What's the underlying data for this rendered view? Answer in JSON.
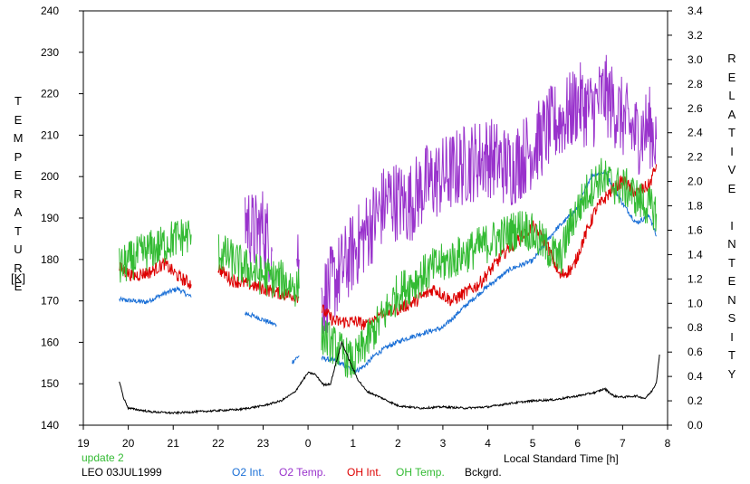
{
  "chart_data": {
    "type": "line",
    "axes": {
      "x": {
        "label": "Local Standard Time [h]",
        "ticks": [
          "19",
          "20",
          "21",
          "22",
          "23",
          "0",
          "1",
          "2",
          "3",
          "4",
          "5",
          "6",
          "7",
          "8"
        ],
        "range": [
          19,
          32
        ]
      },
      "y_left": {
        "label_letters": [
          "T",
          "E",
          "M",
          "P",
          "E",
          "R",
          "A",
          "T",
          "U",
          "R",
          "E"
        ],
        "unit": "[K]",
        "range": [
          140,
          240
        ],
        "ticks": [
          "140",
          "150",
          "160",
          "170",
          "180",
          "190",
          "200",
          "210",
          "220",
          "230",
          "240"
        ]
      },
      "y_right": {
        "label_words": [
          [
            "R",
            "E",
            "L",
            "A",
            "T",
            "I",
            "V",
            "E"
          ],
          [
            "I",
            "N",
            "T",
            "E",
            "N",
            "S",
            "I",
            "T",
            "Y"
          ]
        ],
        "range": [
          0.0,
          3.4
        ],
        "ticks": [
          "0.0",
          "0.2",
          "0.4",
          "0.6",
          "0.8",
          "1.0",
          "1.2",
          "1.4",
          "1.6",
          "1.8",
          "2.0",
          "2.2",
          "2.4",
          "2.6",
          "2.8",
          "3.0",
          "3.2",
          "3.4"
        ]
      }
    },
    "grid": false,
    "notes": {
      "update": "update 2",
      "station": "LEO 03JUL1999"
    },
    "legend_position": "bottom",
    "series": [
      {
        "name": "O2 Int.",
        "color": "#1a6fd6",
        "axis": "right",
        "noise": 0.02,
        "segments": [
          {
            "x": [
              19.8,
              20.1,
              20.4,
              20.8,
              21.1,
              21.4
            ],
            "y": [
              1.03,
              1.02,
              1.01,
              1.08,
              1.12,
              1.05
            ]
          },
          {
            "x": [
              22.6,
              22.9,
              23.3
            ],
            "y": [
              0.92,
              0.88,
              0.82
            ]
          },
          {
            "x": [
              23.65,
              23.8
            ],
            "y": [
              0.52,
              0.57
            ]
          },
          {
            "x": [
              24.3,
              24.6,
              24.9,
              25.1,
              25.3,
              25.5,
              25.8,
              26.1,
              26.5,
              27.0,
              27.5,
              28.0,
              28.5,
              29.0,
              29.5,
              30.0,
              30.3,
              30.6,
              31.0,
              31.3,
              31.6,
              31.75
            ],
            "y": [
              0.55,
              0.53,
              0.47,
              0.45,
              0.5,
              0.58,
              0.65,
              0.7,
              0.75,
              0.8,
              0.98,
              1.14,
              1.28,
              1.35,
              1.6,
              1.78,
              2.05,
              2.08,
              1.82,
              1.66,
              1.72,
              1.55
            ]
          }
        ]
      },
      {
        "name": "O2 Temp.",
        "color": "#9933cc",
        "axis": "left",
        "noise": 10,
        "segments": [
          {
            "x": [
              22.6,
              22.8,
              23.0,
              23.2
            ],
            "y": [
              190,
              186,
              188,
              182
            ]
          },
          {
            "x": [
              23.75,
              23.8
            ],
            "y": [
              182,
              180
            ]
          },
          {
            "x": [
              24.3,
              24.6,
              24.9,
              25.2,
              25.5,
              25.8,
              26.2,
              26.6,
              27.0,
              27.5,
              28.0,
              28.5,
              29.0,
              29.4,
              29.8,
              30.0,
              30.3,
              30.6,
              31.0,
              31.3,
              31.6,
              31.75
            ],
            "y": [
              170,
              175,
              180,
              185,
              190,
              195,
              193,
              198,
              200,
              203,
              205,
              202,
              207,
              212,
              215,
              218,
              216,
              220,
              214,
              210,
              212,
              209
            ]
          }
        ]
      },
      {
        "name": "OH Int.",
        "color": "#dd0000",
        "axis": "left",
        "noise": 1.6,
        "segments": [
          {
            "x": [
              19.8,
              20.1,
              20.5,
              20.8,
              21.1,
              21.4
            ],
            "y": [
              178,
              176,
              177,
              179,
              176,
              174
            ]
          },
          {
            "x": [
              22.0,
              22.3,
              22.7,
              23.0,
              23.3,
              23.8
            ],
            "y": [
              178,
              175,
              174,
              173,
              172,
              171
            ]
          },
          {
            "x": [
              24.3,
              24.6,
              24.9,
              25.1,
              25.3,
              25.6,
              26.0,
              26.4,
              26.8,
              27.2,
              27.5,
              27.8,
              28.1,
              28.4,
              28.7,
              29.0,
              29.3,
              29.6,
              29.9,
              30.1,
              30.4,
              30.7,
              31.0,
              31.3,
              31.6,
              31.75
            ],
            "y": [
              168,
              165,
              165,
              165,
              164,
              167,
              168,
              170,
              173,
              170,
              172,
              174,
              178,
              182,
              185,
              188,
              184,
              176,
              178,
              184,
              192,
              196,
              199,
              196,
              198,
              203
            ]
          }
        ]
      },
      {
        "name": "OH Temp.",
        "color": "#33bb33",
        "axis": "left",
        "noise": 5,
        "segments": [
          {
            "x": [
              19.8,
              20.1,
              20.4,
              20.7,
              21.0,
              21.4
            ],
            "y": [
              178,
              180,
              182,
              183,
              185,
              186
            ]
          },
          {
            "x": [
              22.0,
              22.3,
              22.6,
              23.0,
              23.4,
              23.8
            ],
            "y": [
              182,
              180,
              178,
              176,
              175,
              173
            ]
          },
          {
            "x": [
              24.3,
              24.5,
              24.8,
              25.0,
              25.3,
              25.6,
              26.0,
              26.4,
              26.8,
              27.2,
              27.6,
              28.0,
              28.4,
              28.8,
              29.2,
              29.6,
              29.9,
              30.2,
              30.5,
              30.8,
              31.1,
              31.4,
              31.7,
              31.75
            ],
            "y": [
              162,
              160,
              157,
              155,
              160,
              165,
              172,
              175,
              178,
              180,
              182,
              184,
              186,
              188,
              184,
              180,
              190,
              196,
              200,
              198,
              197,
              194,
              192,
              191
            ]
          }
        ]
      },
      {
        "name": "Bckgrd.",
        "color": "#000000",
        "axis": "right",
        "noise": 0.008,
        "segments": [
          {
            "x": [
              19.8,
              19.9,
              20.0,
              20.5,
              21.0,
              21.5,
              22.0,
              22.5,
              23.0,
              23.4,
              23.7,
              23.85,
              24.0,
              24.15,
              24.35,
              24.5,
              24.6,
              24.75,
              24.9,
              25.1,
              25.3,
              25.6,
              26.0,
              26.5,
              27.0,
              27.5,
              28.0,
              28.5,
              29.0,
              29.5,
              30.0,
              30.4,
              30.6,
              30.8,
              31.0,
              31.3,
              31.5,
              31.65,
              31.75,
              31.82
            ],
            "y": [
              0.36,
              0.22,
              0.14,
              0.11,
              0.1,
              0.11,
              0.12,
              0.13,
              0.16,
              0.2,
              0.27,
              0.35,
              0.43,
              0.42,
              0.33,
              0.34,
              0.48,
              0.68,
              0.55,
              0.38,
              0.28,
              0.23,
              0.16,
              0.14,
              0.15,
              0.14,
              0.15,
              0.18,
              0.2,
              0.21,
              0.24,
              0.27,
              0.3,
              0.24,
              0.23,
              0.24,
              0.22,
              0.28,
              0.35,
              0.58
            ]
          }
        ]
      }
    ]
  }
}
